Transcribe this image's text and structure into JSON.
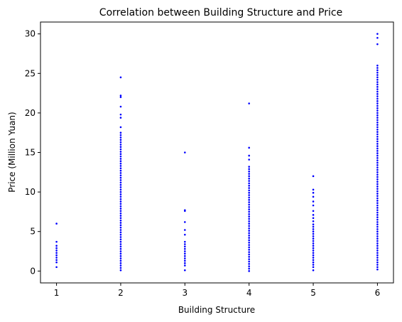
{
  "chart_data": {
    "type": "scatter",
    "title": "Correlation between Building Structure and Price",
    "xlabel": "Building Structure",
    "ylabel": "Price (Million Yuan)",
    "xlim": [
      0.75,
      6.25
    ],
    "ylim": [
      -1.5,
      31.5
    ],
    "xticks": [
      1,
      2,
      3,
      4,
      5,
      6
    ],
    "yticks": [
      0,
      5,
      10,
      15,
      20,
      25,
      30
    ],
    "grid": false,
    "legend": "none",
    "marker_color": "#0000ff",
    "series": [
      {
        "points": [
          {
            "x": 1,
            "y": 6.0
          },
          {
            "x": 1,
            "y": 3.7
          },
          {
            "x": 1,
            "y": 3.2
          },
          {
            "x": 1,
            "y": 2.9
          },
          {
            "x": 1,
            "y": 2.6
          },
          {
            "x": 1,
            "y": 2.3
          },
          {
            "x": 1,
            "y": 2.0
          },
          {
            "x": 1,
            "y": 1.7
          },
          {
            "x": 1,
            "y": 1.4
          },
          {
            "x": 1,
            "y": 1.1
          },
          {
            "x": 1,
            "y": 0.5
          },
          {
            "x": 2,
            "y": 24.5
          },
          {
            "x": 2,
            "y": 22.2
          },
          {
            "x": 2,
            "y": 22.0
          },
          {
            "x": 2,
            "y": 20.8
          },
          {
            "x": 2,
            "y": 19.8
          },
          {
            "x": 2,
            "y": 19.4
          },
          {
            "x": 2,
            "y": 18.2
          },
          {
            "x": 2,
            "y": 17.5
          },
          {
            "x": 2,
            "y": 17.2
          },
          {
            "x": 2,
            "y": 16.9
          },
          {
            "x": 2,
            "y": 16.6
          },
          {
            "x": 2,
            "y": 16.3
          },
          {
            "x": 2,
            "y": 16.0
          },
          {
            "x": 2,
            "y": 15.7
          },
          {
            "x": 2,
            "y": 15.4
          },
          {
            "x": 2,
            "y": 15.1
          },
          {
            "x": 2,
            "y": 14.8
          },
          {
            "x": 2,
            "y": 14.5
          },
          {
            "x": 2,
            "y": 14.2
          },
          {
            "x": 2,
            "y": 13.9
          },
          {
            "x": 2,
            "y": 13.6
          },
          {
            "x": 2,
            "y": 13.3
          },
          {
            "x": 2,
            "y": 13.0
          },
          {
            "x": 2,
            "y": 12.7
          },
          {
            "x": 2,
            "y": 12.4
          },
          {
            "x": 2,
            "y": 12.1
          },
          {
            "x": 2,
            "y": 11.8
          },
          {
            "x": 2,
            "y": 11.5
          },
          {
            "x": 2,
            "y": 11.2
          },
          {
            "x": 2,
            "y": 10.9
          },
          {
            "x": 2,
            "y": 10.6
          },
          {
            "x": 2,
            "y": 10.3
          },
          {
            "x": 2,
            "y": 10.0
          },
          {
            "x": 2,
            "y": 9.7
          },
          {
            "x": 2,
            "y": 9.4
          },
          {
            "x": 2,
            "y": 9.1
          },
          {
            "x": 2,
            "y": 8.8
          },
          {
            "x": 2,
            "y": 8.5
          },
          {
            "x": 2,
            "y": 8.2
          },
          {
            "x": 2,
            "y": 7.9
          },
          {
            "x": 2,
            "y": 7.6
          },
          {
            "x": 2,
            "y": 7.3
          },
          {
            "x": 2,
            "y": 7.0
          },
          {
            "x": 2,
            "y": 6.7
          },
          {
            "x": 2,
            "y": 6.4
          },
          {
            "x": 2,
            "y": 6.1
          },
          {
            "x": 2,
            "y": 5.8
          },
          {
            "x": 2,
            "y": 5.5
          },
          {
            "x": 2,
            "y": 5.2
          },
          {
            "x": 2,
            "y": 4.9
          },
          {
            "x": 2,
            "y": 4.6
          },
          {
            "x": 2,
            "y": 4.3
          },
          {
            "x": 2,
            "y": 4.0
          },
          {
            "x": 2,
            "y": 3.7
          },
          {
            "x": 2,
            "y": 3.4
          },
          {
            "x": 2,
            "y": 3.1
          },
          {
            "x": 2,
            "y": 2.8
          },
          {
            "x": 2,
            "y": 2.5
          },
          {
            "x": 2,
            "y": 2.2
          },
          {
            "x": 2,
            "y": 1.9
          },
          {
            "x": 2,
            "y": 1.6
          },
          {
            "x": 2,
            "y": 1.3
          },
          {
            "x": 2,
            "y": 1.0
          },
          {
            "x": 2,
            "y": 0.7
          },
          {
            "x": 2,
            "y": 0.4
          },
          {
            "x": 2,
            "y": 0.1
          },
          {
            "x": 3,
            "y": 15.0
          },
          {
            "x": 3,
            "y": 7.7
          },
          {
            "x": 3,
            "y": 7.6
          },
          {
            "x": 3,
            "y": 6.2
          },
          {
            "x": 3,
            "y": 5.2
          },
          {
            "x": 3,
            "y": 4.6
          },
          {
            "x": 3,
            "y": 3.7
          },
          {
            "x": 3,
            "y": 3.4
          },
          {
            "x": 3,
            "y": 3.1
          },
          {
            "x": 3,
            "y": 2.8
          },
          {
            "x": 3,
            "y": 2.5
          },
          {
            "x": 3,
            "y": 2.2
          },
          {
            "x": 3,
            "y": 1.9
          },
          {
            "x": 3,
            "y": 1.6
          },
          {
            "x": 3,
            "y": 1.3
          },
          {
            "x": 3,
            "y": 1.0
          },
          {
            "x": 3,
            "y": 0.7
          },
          {
            "x": 3,
            "y": 0.1
          },
          {
            "x": 4,
            "y": 21.2
          },
          {
            "x": 4,
            "y": 15.6
          },
          {
            "x": 4,
            "y": 14.6
          },
          {
            "x": 4,
            "y": 14.1
          },
          {
            "x": 4,
            "y": 13.2
          },
          {
            "x": 4,
            "y": 12.9
          },
          {
            "x": 4,
            "y": 12.6
          },
          {
            "x": 4,
            "y": 12.3
          },
          {
            "x": 4,
            "y": 12.0
          },
          {
            "x": 4,
            "y": 11.7
          },
          {
            "x": 4,
            "y": 11.4
          },
          {
            "x": 4,
            "y": 11.1
          },
          {
            "x": 4,
            "y": 10.8
          },
          {
            "x": 4,
            "y": 10.5
          },
          {
            "x": 4,
            "y": 10.2
          },
          {
            "x": 4,
            "y": 9.9
          },
          {
            "x": 4,
            "y": 9.6
          },
          {
            "x": 4,
            "y": 9.3
          },
          {
            "x": 4,
            "y": 9.0
          },
          {
            "x": 4,
            "y": 8.7
          },
          {
            "x": 4,
            "y": 8.4
          },
          {
            "x": 4,
            "y": 8.1
          },
          {
            "x": 4,
            "y": 7.8
          },
          {
            "x": 4,
            "y": 7.5
          },
          {
            "x": 4,
            "y": 7.2
          },
          {
            "x": 4,
            "y": 6.9
          },
          {
            "x": 4,
            "y": 6.6
          },
          {
            "x": 4,
            "y": 6.3
          },
          {
            "x": 4,
            "y": 6.0
          },
          {
            "x": 4,
            "y": 5.7
          },
          {
            "x": 4,
            "y": 5.4
          },
          {
            "x": 4,
            "y": 5.1
          },
          {
            "x": 4,
            "y": 4.8
          },
          {
            "x": 4,
            "y": 4.5
          },
          {
            "x": 4,
            "y": 4.2
          },
          {
            "x": 4,
            "y": 3.9
          },
          {
            "x": 4,
            "y": 3.6
          },
          {
            "x": 4,
            "y": 3.3
          },
          {
            "x": 4,
            "y": 3.0
          },
          {
            "x": 4,
            "y": 2.7
          },
          {
            "x": 4,
            "y": 2.4
          },
          {
            "x": 4,
            "y": 2.1
          },
          {
            "x": 4,
            "y": 1.8
          },
          {
            "x": 4,
            "y": 1.5
          },
          {
            "x": 4,
            "y": 1.2
          },
          {
            "x": 4,
            "y": 0.9
          },
          {
            "x": 4,
            "y": 0.6
          },
          {
            "x": 4,
            "y": 0.3
          },
          {
            "x": 4,
            "y": 0.0
          },
          {
            "x": 5,
            "y": 12.0
          },
          {
            "x": 5,
            "y": 10.3
          },
          {
            "x": 5,
            "y": 9.9
          },
          {
            "x": 5,
            "y": 9.4
          },
          {
            "x": 5,
            "y": 8.8
          },
          {
            "x": 5,
            "y": 8.3
          },
          {
            "x": 5,
            "y": 7.6
          },
          {
            "x": 5,
            "y": 7.1
          },
          {
            "x": 5,
            "y": 6.7
          },
          {
            "x": 5,
            "y": 6.3
          },
          {
            "x": 5,
            "y": 5.9
          },
          {
            "x": 5,
            "y": 5.6
          },
          {
            "x": 5,
            "y": 5.3
          },
          {
            "x": 5,
            "y": 5.0
          },
          {
            "x": 5,
            "y": 4.7
          },
          {
            "x": 5,
            "y": 4.4
          },
          {
            "x": 5,
            "y": 4.1
          },
          {
            "x": 5,
            "y": 3.8
          },
          {
            "x": 5,
            "y": 3.5
          },
          {
            "x": 5,
            "y": 3.2
          },
          {
            "x": 5,
            "y": 2.9
          },
          {
            "x": 5,
            "y": 2.6
          },
          {
            "x": 5,
            "y": 2.3
          },
          {
            "x": 5,
            "y": 2.0
          },
          {
            "x": 5,
            "y": 1.7
          },
          {
            "x": 5,
            "y": 1.4
          },
          {
            "x": 5,
            "y": 1.1
          },
          {
            "x": 5,
            "y": 0.8
          },
          {
            "x": 5,
            "y": 0.5
          },
          {
            "x": 5,
            "y": 0.1
          },
          {
            "x": 6,
            "y": 30.0
          },
          {
            "x": 6,
            "y": 29.5
          },
          {
            "x": 6,
            "y": 28.7
          },
          {
            "x": 6,
            "y": 26.0
          },
          {
            "x": 6,
            "y": 25.7
          },
          {
            "x": 6,
            "y": 25.4
          },
          {
            "x": 6,
            "y": 25.1
          },
          {
            "x": 6,
            "y": 24.8
          },
          {
            "x": 6,
            "y": 24.5
          },
          {
            "x": 6,
            "y": 24.2
          },
          {
            "x": 6,
            "y": 23.9
          },
          {
            "x": 6,
            "y": 23.6
          },
          {
            "x": 6,
            "y": 23.3
          },
          {
            "x": 6,
            "y": 23.0
          },
          {
            "x": 6,
            "y": 22.7
          },
          {
            "x": 6,
            "y": 22.4
          },
          {
            "x": 6,
            "y": 22.1
          },
          {
            "x": 6,
            "y": 21.8
          },
          {
            "x": 6,
            "y": 21.5
          },
          {
            "x": 6,
            "y": 21.2
          },
          {
            "x": 6,
            "y": 20.9
          },
          {
            "x": 6,
            "y": 20.6
          },
          {
            "x": 6,
            "y": 20.3
          },
          {
            "x": 6,
            "y": 20.0
          },
          {
            "x": 6,
            "y": 19.7
          },
          {
            "x": 6,
            "y": 19.4
          },
          {
            "x": 6,
            "y": 19.1
          },
          {
            "x": 6,
            "y": 18.8
          },
          {
            "x": 6,
            "y": 18.5
          },
          {
            "x": 6,
            "y": 18.2
          },
          {
            "x": 6,
            "y": 17.9
          },
          {
            "x": 6,
            "y": 17.6
          },
          {
            "x": 6,
            "y": 17.3
          },
          {
            "x": 6,
            "y": 17.0
          },
          {
            "x": 6,
            "y": 16.7
          },
          {
            "x": 6,
            "y": 16.4
          },
          {
            "x": 6,
            "y": 16.1
          },
          {
            "x": 6,
            "y": 15.8
          },
          {
            "x": 6,
            "y": 15.5
          },
          {
            "x": 6,
            "y": 15.2
          },
          {
            "x": 6,
            "y": 14.9
          },
          {
            "x": 6,
            "y": 14.6
          },
          {
            "x": 6,
            "y": 14.3
          },
          {
            "x": 6,
            "y": 14.0
          },
          {
            "x": 6,
            "y": 13.7
          },
          {
            "x": 6,
            "y": 13.4
          },
          {
            "x": 6,
            "y": 13.1
          },
          {
            "x": 6,
            "y": 12.8
          },
          {
            "x": 6,
            "y": 12.5
          },
          {
            "x": 6,
            "y": 12.2
          },
          {
            "x": 6,
            "y": 11.9
          },
          {
            "x": 6,
            "y": 11.6
          },
          {
            "x": 6,
            "y": 11.3
          },
          {
            "x": 6,
            "y": 11.0
          },
          {
            "x": 6,
            "y": 10.7
          },
          {
            "x": 6,
            "y": 10.4
          },
          {
            "x": 6,
            "y": 10.1
          },
          {
            "x": 6,
            "y": 9.8
          },
          {
            "x": 6,
            "y": 9.5
          },
          {
            "x": 6,
            "y": 9.2
          },
          {
            "x": 6,
            "y": 8.9
          },
          {
            "x": 6,
            "y": 8.6
          },
          {
            "x": 6,
            "y": 8.3
          },
          {
            "x": 6,
            "y": 8.0
          },
          {
            "x": 6,
            "y": 7.7
          },
          {
            "x": 6,
            "y": 7.4
          },
          {
            "x": 6,
            "y": 7.1
          },
          {
            "x": 6,
            "y": 6.8
          },
          {
            "x": 6,
            "y": 6.5
          },
          {
            "x": 6,
            "y": 6.2
          },
          {
            "x": 6,
            "y": 5.9
          },
          {
            "x": 6,
            "y": 5.6
          },
          {
            "x": 6,
            "y": 5.3
          },
          {
            "x": 6,
            "y": 5.0
          },
          {
            "x": 6,
            "y": 4.7
          },
          {
            "x": 6,
            "y": 4.4
          },
          {
            "x": 6,
            "y": 4.1
          },
          {
            "x": 6,
            "y": 3.8
          },
          {
            "x": 6,
            "y": 3.5
          },
          {
            "x": 6,
            "y": 3.2
          },
          {
            "x": 6,
            "y": 2.9
          },
          {
            "x": 6,
            "y": 2.6
          },
          {
            "x": 6,
            "y": 2.3
          },
          {
            "x": 6,
            "y": 2.0
          },
          {
            "x": 6,
            "y": 1.7
          },
          {
            "x": 6,
            "y": 1.4
          },
          {
            "x": 6,
            "y": 1.1
          },
          {
            "x": 6,
            "y": 0.8
          },
          {
            "x": 6,
            "y": 0.5
          },
          {
            "x": 6,
            "y": 0.2
          }
        ]
      }
    ]
  }
}
